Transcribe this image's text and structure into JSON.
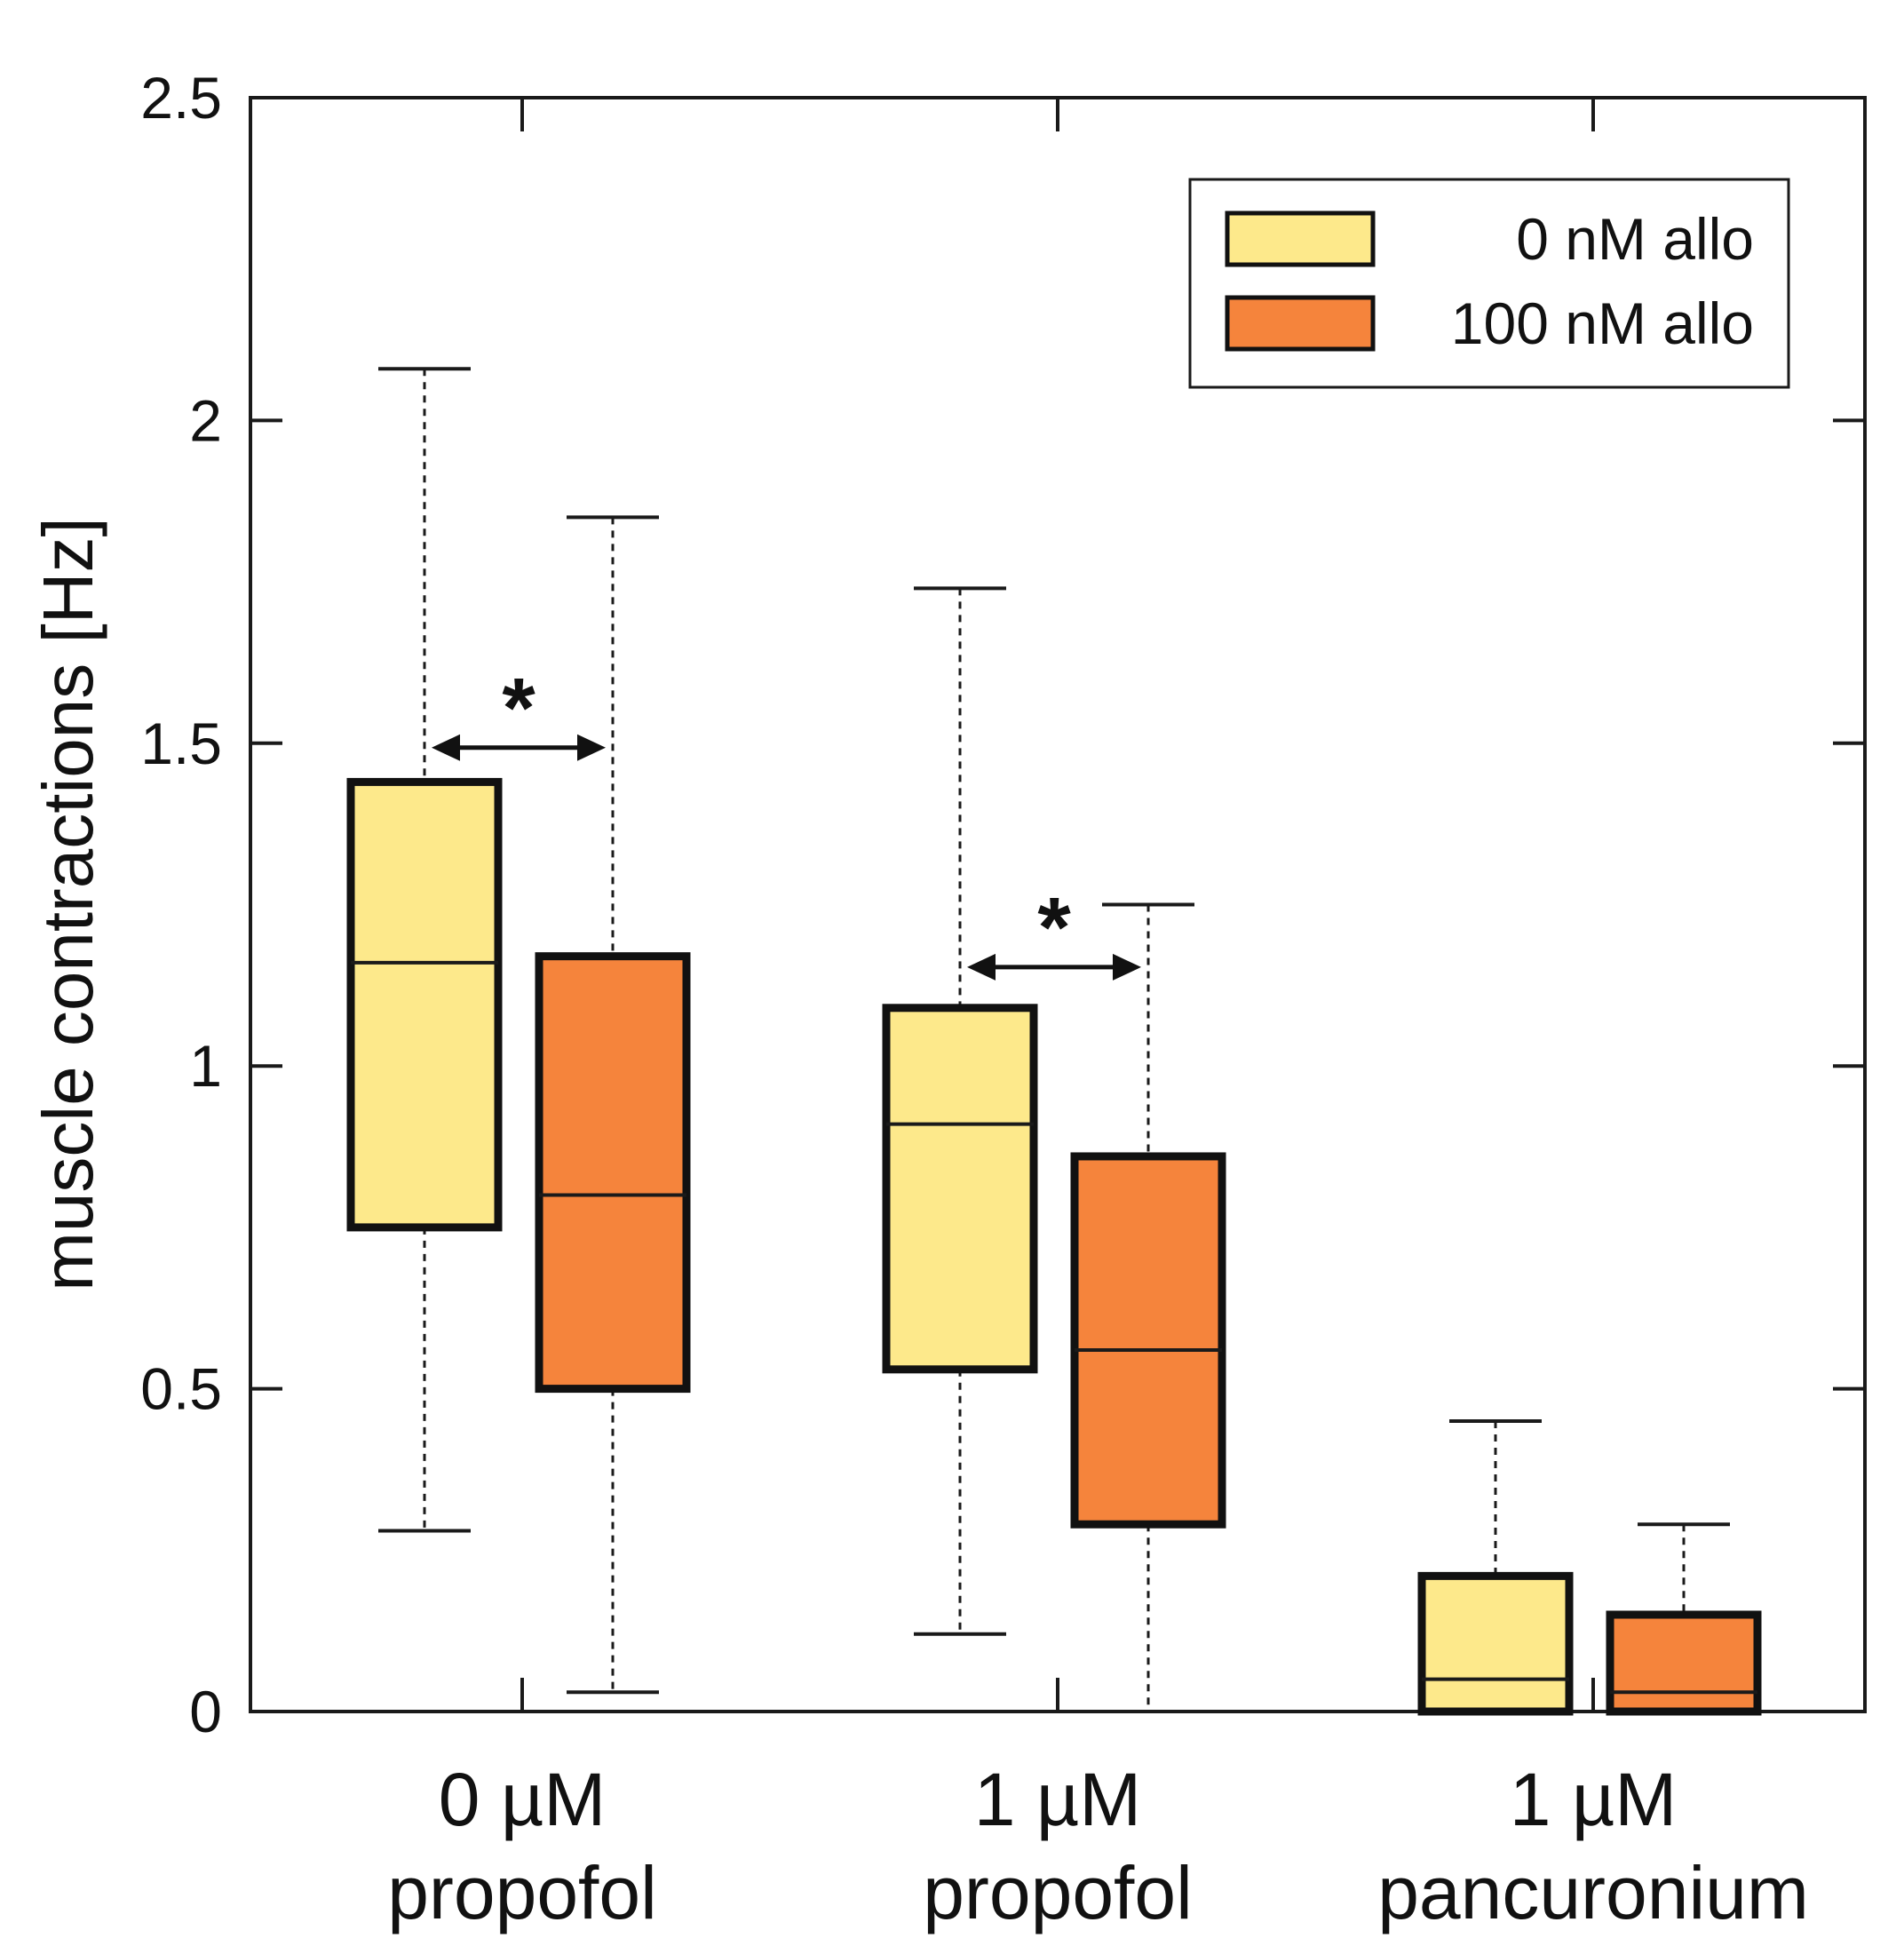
{
  "chart_data": {
    "type": "box",
    "ylabel": "muscle contractions [Hz]",
    "ylim": [
      0,
      2.5
    ],
    "yticks": [
      "0",
      "0.5",
      "1",
      "1.5",
      "2",
      "2.5"
    ],
    "categories": [
      {
        "line1": "0 µM",
        "line2": "propofol"
      },
      {
        "line1": "1 µM",
        "line2": "propofol"
      },
      {
        "line1": "1 µM",
        "line2": "pancuronium"
      }
    ],
    "series": [
      {
        "name": "0 nM allo",
        "color": "#FDE98B",
        "boxes": [
          {
            "whisker_low": 0.28,
            "q1": 0.75,
            "median": 1.16,
            "q3": 1.44,
            "whisker_high": 2.08
          },
          {
            "whisker_low": 0.12,
            "q1": 0.53,
            "median": 0.91,
            "q3": 1.09,
            "whisker_high": 1.74
          },
          {
            "whisker_low": 0.0,
            "q1": 0.0,
            "median": 0.05,
            "q3": 0.21,
            "whisker_high": 0.45
          }
        ]
      },
      {
        "name": "100 nM allo",
        "color": "#F5843C",
        "boxes": [
          {
            "whisker_low": 0.03,
            "q1": 0.5,
            "median": 0.8,
            "q3": 1.17,
            "whisker_high": 1.85
          },
          {
            "whisker_low": 0.0,
            "q1": 0.29,
            "median": 0.56,
            "q3": 0.86,
            "whisker_high": 1.25
          },
          {
            "whisker_low": 0.0,
            "q1": 0.0,
            "median": 0.03,
            "q3": 0.15,
            "whisker_high": 0.29
          }
        ]
      }
    ],
    "significance": [
      {
        "category": 0,
        "label": "*",
        "y": 1.5
      },
      {
        "category": 1,
        "label": "*",
        "y": 1.16
      }
    ],
    "legend_position": "top-right",
    "grid": false
  }
}
